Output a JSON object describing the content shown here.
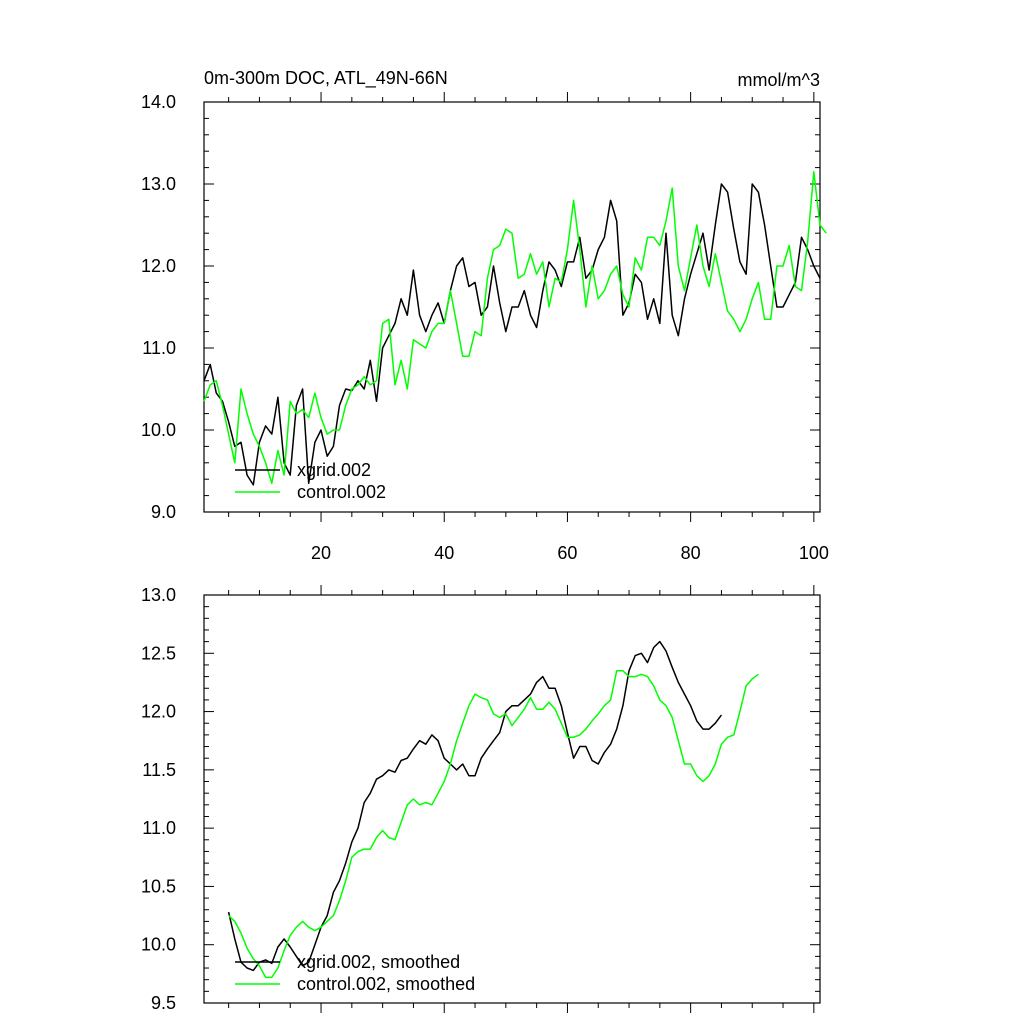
{
  "chart_data": [
    {
      "type": "line",
      "title": "0m-300m DOC, ATL_49N-66N",
      "units": "mmol/m^3",
      "xlabel": "",
      "ylabel": "",
      "xlim": [
        1,
        101
      ],
      "ylim": [
        9.0,
        14.0
      ],
      "xticks": [
        20,
        40,
        60,
        80,
        100
      ],
      "yticks": [
        9.0,
        10.0,
        11.0,
        12.0,
        13.0,
        14.0
      ],
      "ytick_labels": [
        "9.0",
        "10.0",
        "11.0",
        "12.0",
        "13.0",
        "14.0"
      ],
      "show_xtick_labels": true,
      "legend": {
        "placement": "bottom-left"
      },
      "series": [
        {
          "name": "xgrid.002",
          "color": "#000000",
          "x_start": 1,
          "values": [
            10.6,
            10.8,
            10.45,
            10.35,
            10.1,
            9.8,
            9.85,
            9.45,
            9.33,
            9.85,
            10.05,
            9.95,
            10.4,
            9.6,
            9.45,
            10.3,
            10.5,
            9.35,
            9.85,
            10.0,
            9.68,
            9.8,
            10.3,
            10.5,
            10.48,
            10.6,
            10.5,
            10.85,
            10.35,
            11.0,
            11.15,
            11.3,
            11.6,
            11.4,
            11.95,
            11.4,
            11.2,
            11.4,
            11.55,
            11.3,
            11.7,
            12.0,
            12.1,
            11.75,
            11.8,
            11.4,
            11.5,
            12.0,
            11.55,
            11.2,
            11.5,
            11.5,
            11.7,
            11.4,
            11.25,
            11.7,
            12.05,
            11.95,
            11.75,
            12.05,
            12.05,
            12.35,
            11.85,
            11.95,
            12.2,
            12.35,
            12.8,
            12.55,
            11.4,
            11.55,
            11.9,
            11.8,
            11.35,
            11.6,
            11.3,
            12.4,
            11.4,
            11.15,
            11.6,
            11.9,
            12.15,
            12.4,
            11.95,
            12.5,
            13.0,
            12.9,
            12.45,
            12.05,
            11.9,
            13.0,
            12.9,
            12.5,
            12.0,
            11.5,
            11.5,
            11.65,
            11.8,
            12.35,
            12.2,
            12.0,
            11.85
          ]
        },
        {
          "name": "control.002",
          "color": "#00ff00",
          "x_start": 1,
          "values": [
            10.35,
            10.55,
            10.6,
            10.3,
            9.95,
            9.6,
            10.5,
            10.2,
            9.95,
            9.8,
            9.6,
            9.35,
            9.75,
            9.45,
            10.35,
            10.2,
            10.25,
            10.15,
            10.45,
            10.15,
            9.95,
            10.0,
            10.0,
            10.3,
            10.5,
            10.55,
            10.65,
            10.55,
            10.6,
            11.3,
            11.35,
            10.55,
            10.85,
            10.5,
            11.1,
            11.05,
            11.0,
            11.2,
            11.3,
            11.3,
            11.7,
            11.3,
            10.9,
            10.9,
            11.2,
            11.15,
            11.85,
            12.2,
            12.25,
            12.45,
            12.4,
            11.85,
            11.9,
            12.15,
            11.9,
            12.05,
            11.5,
            11.85,
            11.8,
            12.2,
            12.8,
            12.2,
            11.5,
            12.0,
            11.6,
            11.7,
            11.9,
            12.0,
            11.65,
            11.5,
            12.1,
            11.95,
            12.35,
            12.35,
            12.25,
            12.55,
            12.95,
            12.0,
            11.7,
            12.1,
            12.5,
            12.0,
            11.75,
            12.15,
            11.8,
            11.45,
            11.35,
            11.2,
            11.35,
            11.6,
            11.8,
            11.35,
            11.35,
            12.0,
            12.0,
            12.25,
            11.75,
            11.7,
            12.3,
            13.15,
            12.5,
            12.4
          ]
        }
      ]
    },
    {
      "type": "line",
      "title": "",
      "xlabel": "",
      "ylabel": "",
      "xlim": [
        1,
        101
      ],
      "ylim": [
        9.5,
        13.0
      ],
      "xticks": [
        20,
        40,
        60,
        80,
        100
      ],
      "yticks": [
        9.5,
        10.0,
        10.5,
        11.0,
        11.5,
        12.0,
        12.5,
        13.0
      ],
      "ytick_labels": [
        "9.5",
        "10.0",
        "10.5",
        "11.0",
        "11.5",
        "12.0",
        "12.5",
        "13.0"
      ],
      "show_xtick_labels": false,
      "legend": {
        "placement": "bottom-left"
      },
      "series": [
        {
          "name": "xgrid.002, smoothed",
          "color": "#000000",
          "x_start": 5,
          "values": [
            10.28,
            10.05,
            9.85,
            9.8,
            9.78,
            9.85,
            9.87,
            9.84,
            9.98,
            10.05,
            9.98,
            9.9,
            9.82,
            9.85,
            10.0,
            10.15,
            10.25,
            10.45,
            10.55,
            10.7,
            10.88,
            11.0,
            11.22,
            11.3,
            11.42,
            11.45,
            11.5,
            11.48,
            11.58,
            11.6,
            11.68,
            11.75,
            11.72,
            11.8,
            11.75,
            11.6,
            11.55,
            11.5,
            11.55,
            11.45,
            11.45,
            11.6,
            11.68,
            11.75,
            11.82,
            12.0,
            12.05,
            12.05,
            12.1,
            12.15,
            12.25,
            12.3,
            12.2,
            12.2,
            12.05,
            11.82,
            11.6,
            11.7,
            11.7,
            11.58,
            11.55,
            11.65,
            11.72,
            11.85,
            12.05,
            12.35,
            12.48,
            12.5,
            12.42,
            12.55,
            12.6,
            12.52,
            12.38,
            12.25,
            12.15,
            12.05,
            11.92,
            11.85,
            11.85,
            11.9,
            11.97
          ]
        },
        {
          "name": "control.002, smoothed",
          "color": "#00ff00",
          "x_start": 5,
          "values": [
            10.25,
            10.2,
            10.1,
            9.97,
            9.88,
            9.82,
            9.72,
            9.72,
            9.8,
            9.95,
            10.08,
            10.15,
            10.2,
            10.15,
            10.12,
            10.15,
            10.2,
            10.25,
            10.38,
            10.55,
            10.75,
            10.8,
            10.82,
            10.82,
            10.92,
            10.98,
            10.92,
            10.9,
            11.05,
            11.2,
            11.25,
            11.2,
            11.22,
            11.2,
            11.3,
            11.4,
            11.55,
            11.75,
            11.9,
            12.05,
            12.15,
            12.12,
            12.1,
            11.98,
            11.95,
            11.98,
            11.88,
            11.95,
            12.02,
            12.12,
            12.02,
            12.02,
            12.08,
            12.02,
            11.9,
            11.78,
            11.78,
            11.8,
            11.85,
            11.92,
            11.98,
            12.05,
            12.1,
            12.35,
            12.35,
            12.3,
            12.3,
            12.32,
            12.3,
            12.22,
            12.1,
            12.05,
            11.95,
            11.75,
            11.55,
            11.55,
            11.45,
            11.4,
            11.45,
            11.55,
            11.72,
            11.78,
            11.8,
            12.0,
            12.22,
            12.28,
            12.32
          ]
        }
      ]
    }
  ]
}
